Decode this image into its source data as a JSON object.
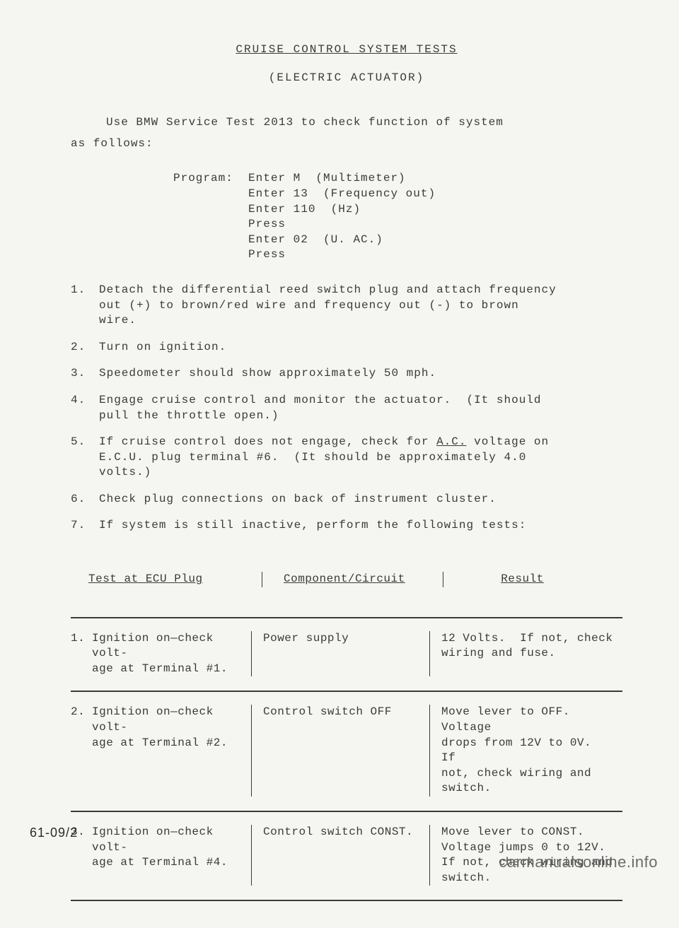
{
  "title": "CRUISE  CONTROL  SYSTEM  TESTS",
  "subtitle": "(ELECTRIC  ACTUATOR)",
  "intro": {
    "line1": "Use BMW Service Test 2013 to check function of system",
    "line2": "as follows:"
  },
  "program": "Program:  Enter M  (Multimeter)\n          Enter 13  (Frequency out)\n          Enter 110  (Hz)\n          Press\n          Enter 02  (U. AC.)\n          Press",
  "steps": [
    {
      "n": "1.",
      "text": "Detach the differential reed switch plug and attach frequency\nout (+) to brown/red wire and frequency out (-) to brown\nwire."
    },
    {
      "n": "2.",
      "text": "Turn on ignition."
    },
    {
      "n": "3.",
      "text": "Speedometer should show approximately 50 mph."
    },
    {
      "n": "4.",
      "text": "Engage cruise control and monitor the actuator.  (It should\npull the throttle open.)"
    },
    {
      "n": "5.",
      "text": "If cruise control does not engage, check for ",
      "ac": "A.C.",
      "text2": " voltage on\nE.C.U. plug terminal #6.  (It should be approximately 4.0\nvolts.)"
    },
    {
      "n": "6.",
      "text": "Check plug connections on back of instrument cluster."
    },
    {
      "n": "7.",
      "text": "If system is still inactive, perform the following tests:"
    }
  ],
  "table": {
    "headers": {
      "c1": "Test at ECU Plug",
      "c2": "Component/Circuit",
      "c3": "Result"
    },
    "rows": [
      {
        "n": "1.",
        "c1": "Ignition on—check volt-\nage at Terminal #1.",
        "c2": "Power supply",
        "c3": "12 Volts.  If not, check\nwiring and fuse."
      },
      {
        "n": "2.",
        "c1": "Ignition on—check volt-\nage at Terminal #2.",
        "c2": "Control switch OFF",
        "c3": "Move lever to OFF. Voltage\ndrops from 12V to 0V.  If\nnot, check wiring and\nswitch."
      },
      {
        "n": "3.",
        "c1": "Ignition on—check volt-\nage at Terminal #4.",
        "c2": "Control switch CONST.",
        "c3": "Move lever to CONST.\nVoltage jumps 0 to 12V.\nIf not, check wiring and\nswitch."
      }
    ]
  },
  "pageNumber": "61-09/2",
  "watermark": "carmanualsonline.info"
}
